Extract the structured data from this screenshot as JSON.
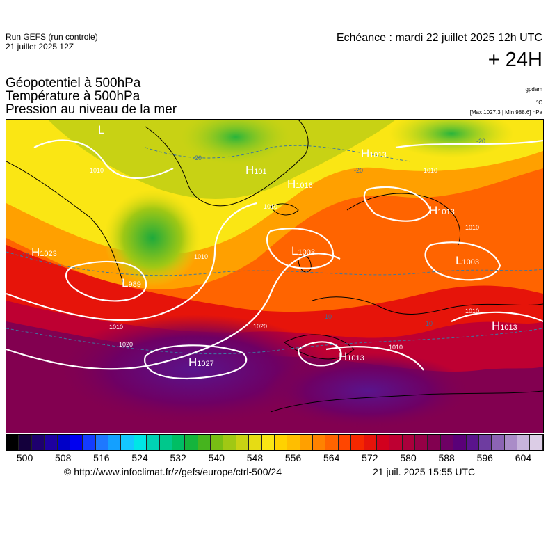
{
  "run": {
    "line1": "Run GEFS (run controle)",
    "line2": "21 juillet 2025 12Z"
  },
  "echeance": "Echéance : mardi 22 juillet 2025 12h UTC",
  "lead_time": "+ 24H",
  "params": [
    "Géopotentiel à 500hPa",
    "Température à 500hPa",
    "Pression au niveau de la mer"
  ],
  "units": {
    "geo": "gpdam",
    "temp": "°C",
    "press": "[Max 1027.3 | Min 988.6] hPa"
  },
  "colorbar": {
    "ticks": [
      "500",
      "508",
      "516",
      "524",
      "532",
      "540",
      "548",
      "556",
      "564",
      "572",
      "580",
      "588",
      "596",
      "604"
    ],
    "colors": [
      "#000000",
      "#14003c",
      "#1e006e",
      "#1e00a0",
      "#0000c8",
      "#0000f0",
      "#143cff",
      "#1e78ff",
      "#14a0ff",
      "#14c8ff",
      "#00e6e6",
      "#00d2b4",
      "#00c88c",
      "#00be64",
      "#14b43c",
      "#46b41e",
      "#78be14",
      "#a0c814",
      "#c8d214",
      "#e6dc14",
      "#fae614",
      "#ffd200",
      "#ffbe00",
      "#ffa000",
      "#ff8200",
      "#ff6400",
      "#ff4600",
      "#f52800",
      "#e6140a",
      "#d2001e",
      "#be0032",
      "#aa003c",
      "#960046",
      "#820050",
      "#6e0064",
      "#5a0078",
      "#5a148c",
      "#6e3ca0",
      "#8c64b4",
      "#aa8cc8",
      "#c8b4dc",
      "#dccde6"
    ]
  },
  "map_labels": [
    {
      "k": "H",
      "v": "1023"
    },
    {
      "k": "H",
      "v": "1027"
    },
    {
      "k": "H",
      "v": "1013"
    },
    {
      "k": "H",
      "v": "1016"
    },
    {
      "k": "H",
      "v": "1013"
    },
    {
      "k": "H",
      "v": "1013"
    },
    {
      "k": "H",
      "v": "1013"
    },
    {
      "k": "H",
      "v": "101"
    },
    {
      "k": "L",
      "v": "989"
    },
    {
      "k": "L",
      "v": "1003"
    },
    {
      "k": "L",
      "v": "1003"
    },
    {
      "k": "L",
      "v": ""
    }
  ],
  "isobar_labels": [
    "1010",
    "1010",
    "1010",
    "1020",
    "1020",
    "1010",
    "1010",
    "1010",
    "1010",
    "1010"
  ],
  "temp_labels": [
    "-20",
    "-20",
    "-20",
    "-10",
    "-10",
    "-10"
  ],
  "footer": {
    "url": "© http://www.infoclimat.fr/z/gefs/europe/ctrl-500/24",
    "generated": "21 juil. 2025 15:55 UTC"
  }
}
